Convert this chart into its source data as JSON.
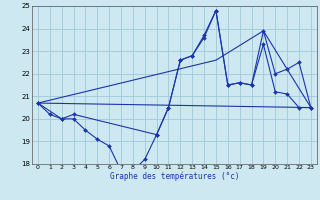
{
  "title": "Graphe des températures (°c)",
  "background_color": "#cde8f0",
  "grid_color": "#a0c8d8",
  "line_color": "#1a35aa",
  "xlim": [
    -0.5,
    23.5
  ],
  "ylim": [
    18,
    25
  ],
  "xticks": [
    0,
    1,
    2,
    3,
    4,
    5,
    6,
    7,
    8,
    9,
    10,
    11,
    12,
    13,
    14,
    15,
    16,
    17,
    18,
    19,
    20,
    21,
    22,
    23
  ],
  "yticks": [
    18,
    19,
    20,
    21,
    22,
    23,
    24,
    25
  ],
  "series": [
    {
      "x": [
        0,
        1,
        2,
        3,
        4,
        5,
        6,
        7,
        8,
        9,
        10,
        11,
        12,
        13,
        14,
        15,
        16,
        17,
        18,
        19,
        20,
        21,
        22,
        23
      ],
      "y": [
        20.7,
        20.2,
        20.0,
        20.0,
        19.5,
        19.1,
        18.8,
        17.7,
        17.7,
        18.2,
        19.3,
        20.5,
        22.6,
        22.8,
        23.6,
        24.8,
        21.5,
        21.6,
        21.5,
        23.3,
        21.2,
        21.1,
        20.5,
        20.5
      ],
      "marker": "D",
      "markersize": 2.0,
      "lw": 0.8
    },
    {
      "x": [
        0,
        2,
        3,
        10,
        11,
        12,
        13,
        14,
        15,
        16,
        17,
        18,
        19,
        20,
        21,
        22,
        23
      ],
      "y": [
        20.7,
        20.0,
        20.2,
        19.3,
        20.5,
        22.6,
        22.8,
        23.7,
        24.8,
        21.5,
        21.6,
        21.5,
        23.9,
        22.0,
        22.2,
        22.5,
        20.5
      ],
      "marker": "D",
      "markersize": 2.0,
      "lw": 0.8
    },
    {
      "x": [
        0,
        23
      ],
      "y": [
        20.7,
        20.5
      ],
      "marker": null,
      "markersize": 0,
      "lw": 0.8
    },
    {
      "x": [
        0,
        15,
        19,
        23
      ],
      "y": [
        20.7,
        22.6,
        23.9,
        20.5
      ],
      "marker": null,
      "markersize": 0,
      "lw": 0.8
    }
  ]
}
